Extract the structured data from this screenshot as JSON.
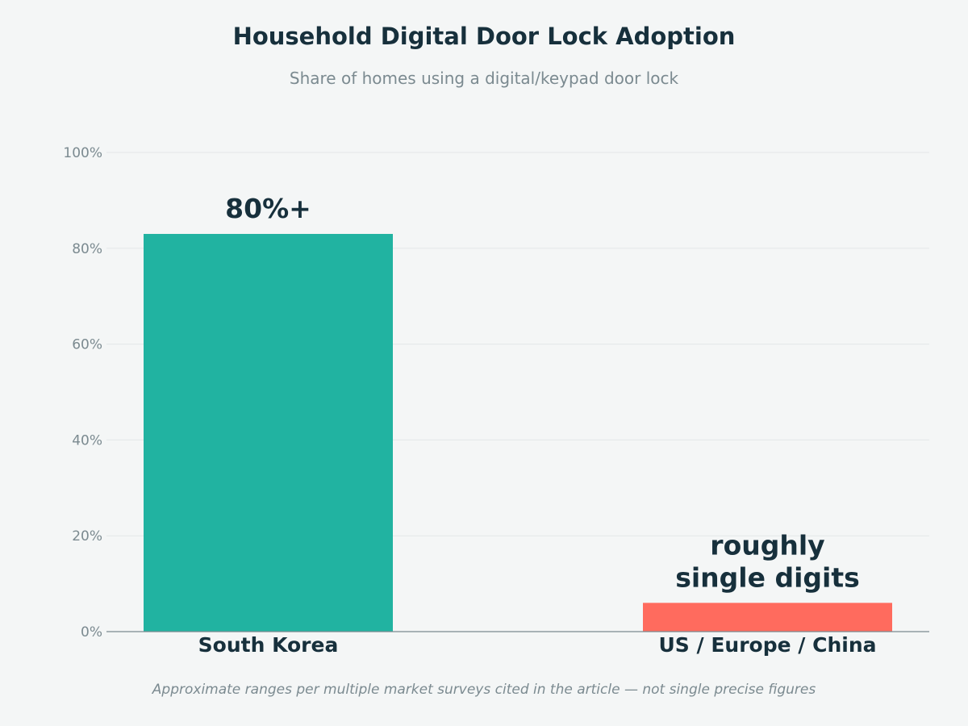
{
  "chart_data": {
    "type": "bar",
    "title": "Household Digital Door Lock Adoption",
    "subtitle": "Share of homes using a digital/keypad door lock",
    "categories": [
      "South Korea",
      "US / Europe / China"
    ],
    "values": [
      83,
      6
    ],
    "data_labels": [
      [
        "80%+"
      ],
      [
        "roughly",
        "single digits"
      ]
    ],
    "colors": [
      "#21b3a1",
      "#ff6b5e"
    ],
    "ylim": [
      0,
      100
    ],
    "yticks": [
      0,
      20,
      40,
      60,
      80,
      100
    ],
    "ytick_labels": [
      "0%",
      "20%",
      "40%",
      "60%",
      "80%",
      "100%"
    ],
    "grid": true,
    "footnote": "Approximate ranges per multiple market surveys cited in the article — not single precise figures"
  }
}
